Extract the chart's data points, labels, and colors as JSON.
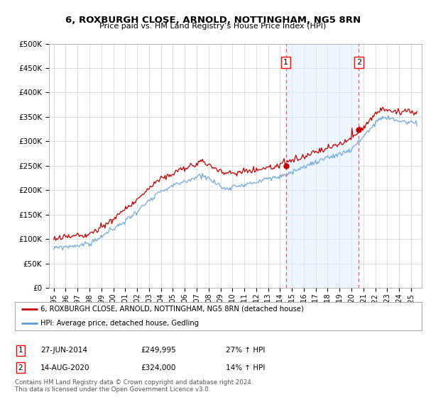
{
  "title": "6, ROXBURGH CLOSE, ARNOLD, NOTTINGHAM, NG5 8RN",
  "subtitle": "Price paid vs. HM Land Registry’s House Price Index (HPI)",
  "ylim": [
    0,
    500000
  ],
  "yticks": [
    0,
    50000,
    100000,
    150000,
    200000,
    250000,
    300000,
    350000,
    400000,
    450000,
    500000
  ],
  "ytick_labels": [
    "£0",
    "£50K",
    "£100K",
    "£150K",
    "£200K",
    "£250K",
    "£300K",
    "£350K",
    "£400K",
    "£450K",
    "£500K"
  ],
  "hpi_color": "#5b9bd5",
  "price_color": "#c00000",
  "vline_color": "#e06060",
  "shade_color": "#ddeeff",
  "marker1_x": 2014.49,
  "marker1_y": 249995,
  "marker2_x": 2020.62,
  "marker2_y": 324000,
  "legend_line1": "6, ROXBURGH CLOSE, ARNOLD, NOTTINGHAM, NG5 8RN (detached house)",
  "legend_line2": "HPI: Average price, detached house, Gedling",
  "marker1_label": "1",
  "marker1_date": "27-JUN-2014",
  "marker1_price": "£249,995",
  "marker1_hpi": "27% ↑ HPI",
  "marker2_label": "2",
  "marker2_date": "14-AUG-2020",
  "marker2_price": "£324,000",
  "marker2_hpi": "14% ↑ HPI",
  "footer": "Contains HM Land Registry data © Crown copyright and database right 2024.\nThis data is licensed under the Open Government Licence v3.0.",
  "background_color": "#ffffff",
  "grid_color": "#d0d0d0",
  "xlim_left": 1994.6,
  "xlim_right": 2025.9
}
